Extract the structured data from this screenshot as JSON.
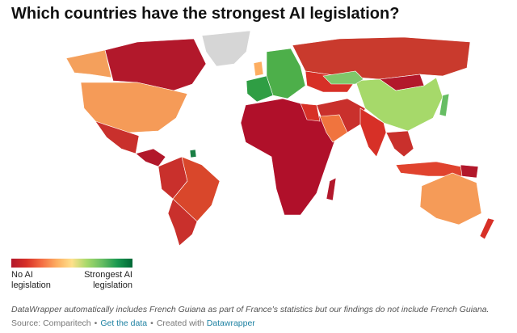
{
  "title": "Which countries have the strongest AI legislation?",
  "legend": {
    "min_label": "No AI legislation",
    "max_label": "Strongest AI legislation",
    "colors": [
      "#b2182b",
      "#d73027",
      "#f46d43",
      "#fdae61",
      "#fee08b",
      "#a6d96a",
      "#66bd63",
      "#1a9850",
      "#006837"
    ]
  },
  "note": "DataWrapper automatically includes French Guiana as part of France's statistics but our findings do not include French Guiana.",
  "footer": {
    "source": "Source: Comparitech",
    "separator": "•",
    "get_data": "Get the data",
    "created_with": "Created with",
    "tool": "Datawrapper"
  }
}
